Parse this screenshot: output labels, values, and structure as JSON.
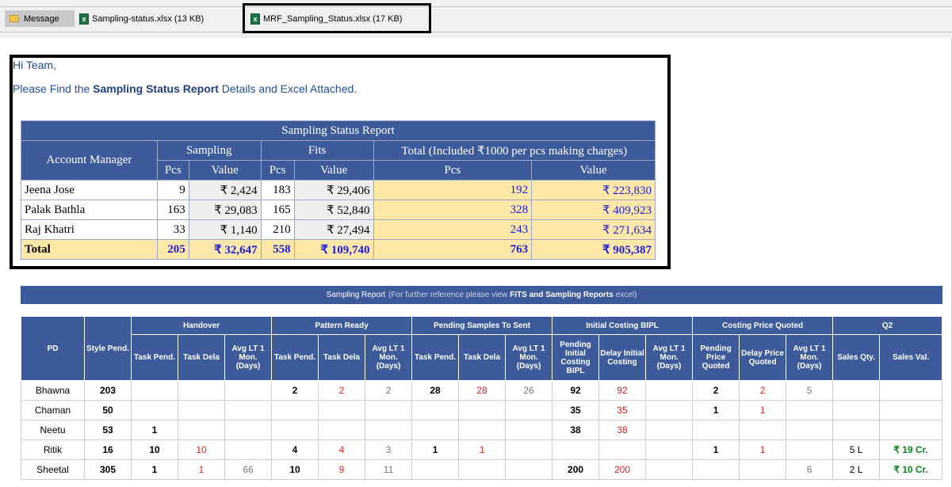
{
  "attachments": {
    "message_label": "Message",
    "file1": "Sampling-status.xlsx (13 KB)",
    "file2": "MRF_Sampling_Status.xlsx (17 KB)"
  },
  "email": {
    "greeting": "Hi Team,",
    "intro_pre": "Please Find the ",
    "intro_bold": "Sampling Status Report",
    "intro_post": " Details and Excel Attached."
  },
  "report1": {
    "title": "Sampling Status Report",
    "h_account_manager": "Account Manager",
    "h_sampling": "Sampling",
    "h_fits": "Fits",
    "h_total": "Total (Included ₹1000 per pcs making charges)",
    "h_pcs": "Pcs",
    "h_value": "Value",
    "rows": [
      {
        "name": "Jeena Jose",
        "s_pcs": "9",
        "s_val": "₹ 2,424",
        "f_pcs": "183",
        "f_val": "₹ 29,406",
        "t_pcs": "192",
        "t_val": "₹ 223,830"
      },
      {
        "name": "Palak Bathla",
        "s_pcs": "163",
        "s_val": "₹ 29,083",
        "f_pcs": "165",
        "f_val": "₹ 52,840",
        "t_pcs": "328",
        "t_val": "₹ 409,923"
      },
      {
        "name": "Raj Khatri",
        "s_pcs": "33",
        "s_val": "₹ 1,140",
        "f_pcs": "210",
        "f_val": "₹ 27,494",
        "t_pcs": "243",
        "t_val": "₹ 271,634"
      }
    ],
    "total": {
      "name": "Total",
      "s_pcs": "205",
      "s_val": "₹ 32,647",
      "f_pcs": "558",
      "f_val": "₹ 109,740",
      "t_pcs": "763",
      "t_val": "₹ 905,387"
    }
  },
  "banner": {
    "title": "Sampling Report",
    "pre": "(For further reference please view",
    "bold": "FITS and Sampling Reports",
    "post": "excel)"
  },
  "report2": {
    "groups": {
      "pd": "PD",
      "style_pend": "Style Pend.",
      "handover": "Handover",
      "pattern_ready": "Pattern Ready",
      "pending_samples": "Pending Samples To Sent",
      "initial_costing": "Initial Costing BIPL",
      "costing_price": "Costing Price Quoted",
      "q2": "Q2"
    },
    "sub": {
      "task_pend": "Task Pend.",
      "task_dela": "Task Dela",
      "avg_lt": "Avg LT 1 Mon. (Days)",
      "pending_initial": "Pending Initial Costing BIPL",
      "delay_initial": "Delay Initial Costing",
      "pending_price": "Pending Price Quoted",
      "delay_price": "Delay Price Quoted",
      "sales_qty": "Sales Qty.",
      "sales_val": "Sales Val."
    },
    "rows": [
      {
        "pd": "Bhawna",
        "style": "203",
        "h1": "",
        "h2": "",
        "h3": "",
        "p1": "2",
        "p2": "2",
        "p3": "2",
        "s1": "28",
        "s2": "28",
        "s3": "26",
        "i1": "92",
        "i2": "92",
        "i3": "",
        "c1": "2",
        "c2": "2",
        "c3": "5",
        "q1": "",
        "q2": ""
      },
      {
        "pd": "Chaman",
        "style": "50",
        "h1": "",
        "h2": "",
        "h3": "",
        "p1": "",
        "p2": "",
        "p3": "",
        "s1": "",
        "s2": "",
        "s3": "",
        "i1": "35",
        "i2": "35",
        "i3": "",
        "c1": "1",
        "c2": "1",
        "c3": "",
        "q1": "",
        "q2": ""
      },
      {
        "pd": "Neetu",
        "style": "53",
        "h1": "1",
        "h2": "",
        "h3": "",
        "p1": "",
        "p2": "",
        "p3": "",
        "s1": "",
        "s2": "",
        "s3": "",
        "i1": "38",
        "i2": "38",
        "i3": "",
        "c1": "",
        "c2": "",
        "c3": "",
        "q1": "",
        "q2": ""
      },
      {
        "pd": "Ritik",
        "style": "16",
        "h1": "10",
        "h2": "10",
        "h3": "",
        "p1": "4",
        "p2": "4",
        "p3": "3",
        "s1": "1",
        "s2": "1",
        "s3": "",
        "i1": "",
        "i2": "",
        "i3": "",
        "c1": "1",
        "c2": "1",
        "c3": "",
        "q1": "5 L",
        "q2": "₹ 19 Cr."
      },
      {
        "pd": "Sheetal",
        "style": "305",
        "h1": "1",
        "h2": "1",
        "h3": "66",
        "p1": "10",
        "p2": "9",
        "p3": "11",
        "s1": "",
        "s2": "",
        "s3": "",
        "i1": "200",
        "i2": "200",
        "i3": "",
        "c1": "",
        "c2": "",
        "c3": "6",
        "q1": "2 L",
        "q2": "₹ 10 Cr."
      }
    ]
  },
  "colors": {
    "header_blue": "#3d5a9a",
    "total_yellow": "#fde8a7",
    "delay_red": "#e02020",
    "sales_green": "#0a8a1e"
  }
}
